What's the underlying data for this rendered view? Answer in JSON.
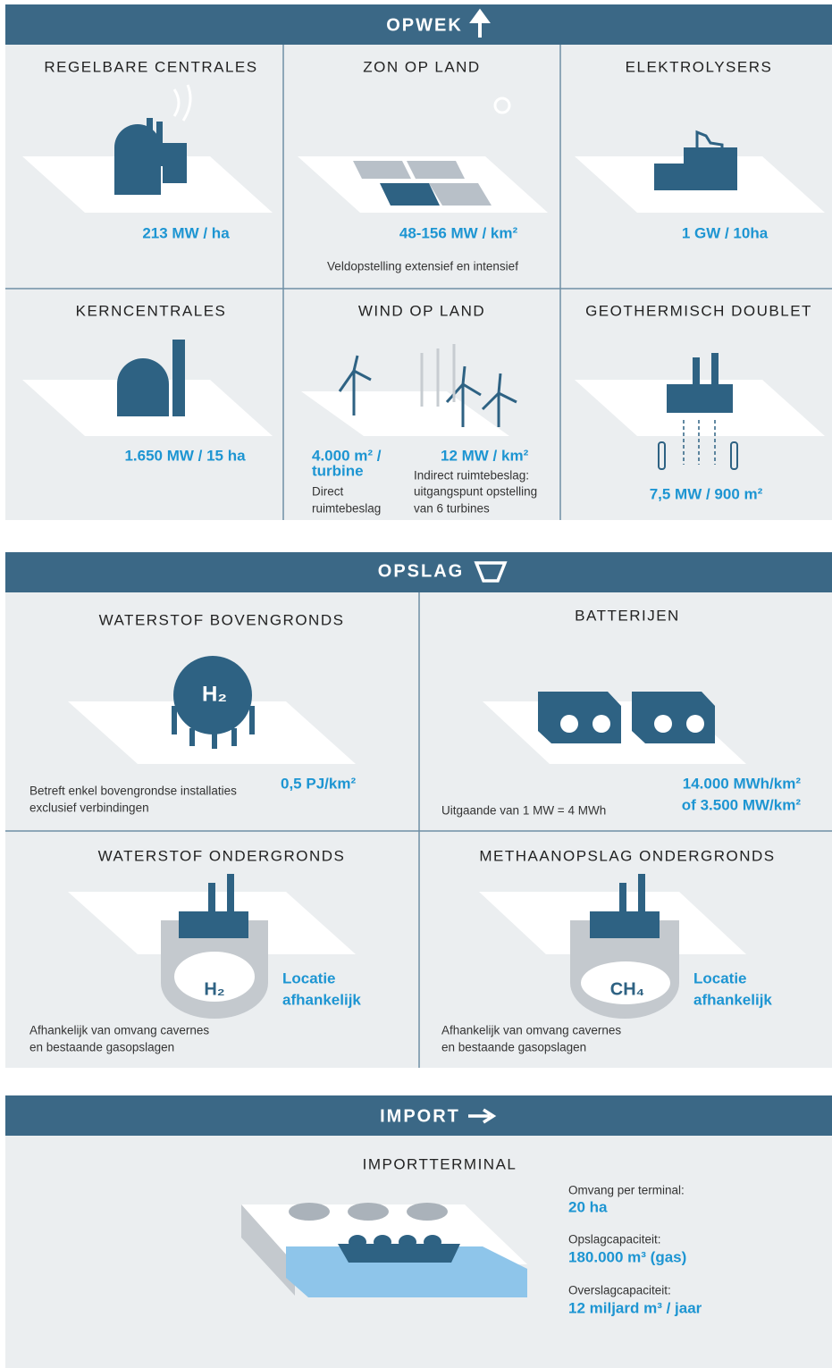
{
  "sections": [
    {
      "title": "OPWEK",
      "panels": [
        {
          "title": "REGELBARE CENTRALES",
          "value": [
            "213 MW / ha"
          ]
        },
        {
          "title": "ZON OP LAND",
          "value": [
            "48-156 MW / km²"
          ],
          "note": [
            "Veldopstelling extensief en intensief"
          ]
        },
        {
          "title": "ELEKTROLYSERS",
          "value": [
            "1 GW / 10ha"
          ]
        },
        {
          "title": "KERNCENTRALES",
          "value": [
            "1.650 MW / 15 ha"
          ]
        },
        {
          "title": "WIND OP LAND",
          "value": [
            "4.000 m² /",
            "turbine",
            "12 MW / km²"
          ],
          "note": [
            "Direct",
            "ruimtebeslag",
            "Indirect ruimtebeslag:",
            "uitgangspunt opstelling",
            "van 6 turbines"
          ]
        },
        {
          "title": "GEOTHERMISCH DOUBLET",
          "value": [
            "7,5 MW / 900 m²"
          ]
        }
      ]
    },
    {
      "title": "OPSLAG",
      "panels": [
        {
          "title": "WATERSTOF BOVENGRONDS",
          "icon": "H₂",
          "value": [
            "0,5 PJ/km²"
          ],
          "note": [
            "Betreft enkel bovengrondse installaties",
            "exclusief verbindingen"
          ]
        },
        {
          "title": "BATTERIJEN",
          "value": [
            "14.000 MWh/km²",
            "of 3.500 MW/km²"
          ],
          "note": [
            "Uitgaande van 1 MW = 4 MWh"
          ]
        },
        {
          "title": "WATERSTOF ONDERGRONDS",
          "icon": "H₂",
          "value": [
            "Locatie",
            "afhankelijk"
          ],
          "note": [
            "Afhankelijk van omvang cavernes",
            "en bestaande gasopslagen"
          ]
        },
        {
          "title": "METHAANOPSLAG ONDERGRONDS",
          "icon": "CH₄",
          "value": [
            "Locatie",
            "afhankelijk"
          ],
          "note": [
            "Afhankelijk van omvang cavernes",
            "en bestaande gasopslagen"
          ]
        }
      ]
    },
    {
      "title": "IMPORT",
      "panels": [
        {
          "title": "IMPORTTERMINAL",
          "items": [
            {
              "label": "Omvang per terminal:",
              "value": "20 ha"
            },
            {
              "label": "Opslagcapaciteit:",
              "value": "180.000 m³ (gas)"
            },
            {
              "label": "Overslagcapaciteit:",
              "value": "12 miljard m³ / jaar"
            }
          ]
        }
      ]
    }
  ]
}
